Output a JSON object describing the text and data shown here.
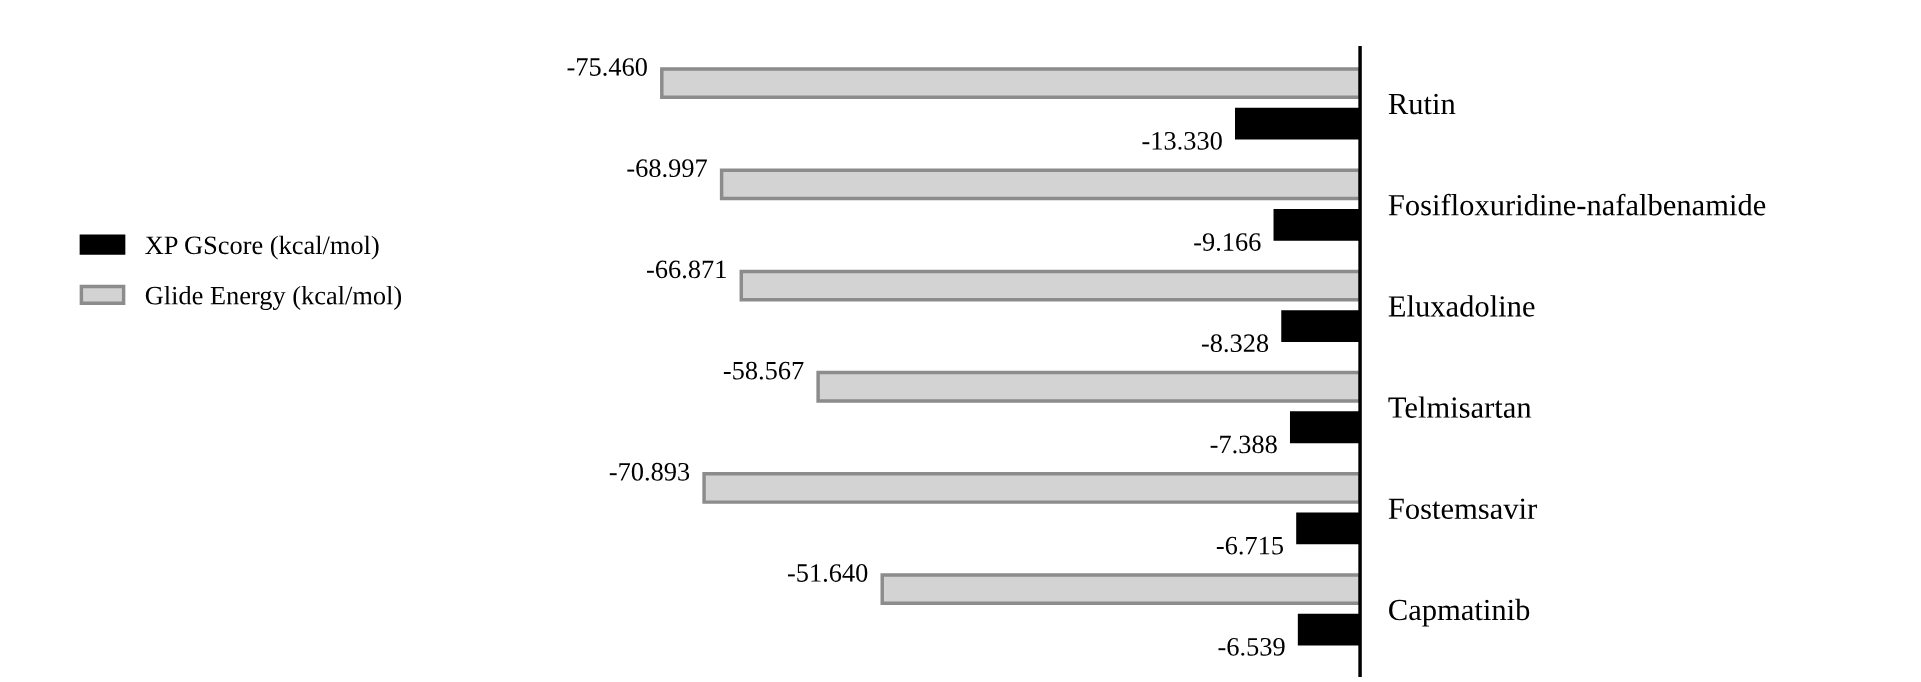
{
  "chart_data": {
    "type": "bar",
    "orientation": "horizontal",
    "legend": "left",
    "categories": [
      "Rutin",
      "Fosifloxuridine-nafalbenamide",
      "Eluxadoline",
      "Telmisartan",
      "Fostemsavir",
      "Capmatinib"
    ],
    "series": [
      {
        "name": "XP GScore (kcal/mol)",
        "color": "#000000",
        "values": [
          -13.33,
          -9.166,
          -8.328,
          -7.388,
          -6.715,
          -6.539
        ],
        "value_labels": [
          "-13.330",
          "-9.166",
          "-8.328",
          "-7.388",
          "-6.715",
          "-6.539"
        ]
      },
      {
        "name": "Glide Energy (kcal/mol)",
        "color": "#d3d3d3",
        "values": [
          -75.46,
          -68.997,
          -66.871,
          -58.567,
          -70.893,
          -51.64
        ],
        "value_labels": [
          "-75.460",
          "-68.997",
          "-66.871",
          "-58.567",
          "-70.893",
          "-51.640"
        ]
      }
    ]
  }
}
